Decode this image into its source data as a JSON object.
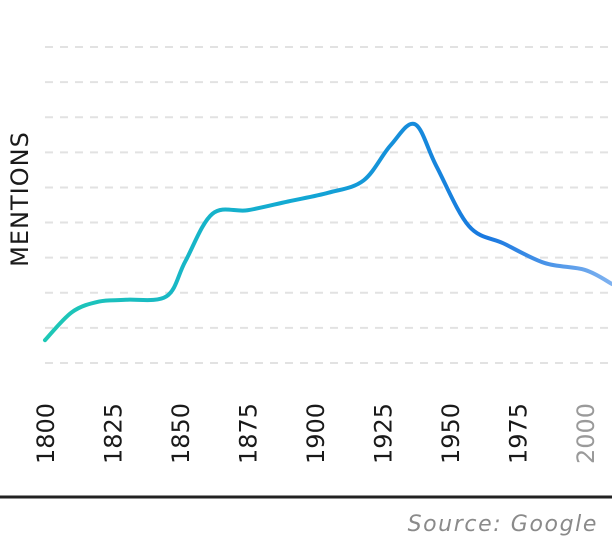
{
  "chart_data": {
    "type": "line",
    "title": "",
    "xlabel": "",
    "ylabel": "MENTIONS",
    "x": [
      1800,
      1810,
      1820,
      1830,
      1845,
      1852,
      1862,
      1875,
      1890,
      1905,
      1918,
      1928,
      1937,
      1945,
      1957,
      1970,
      1985,
      2000,
      2010
    ],
    "values": [
      13,
      29,
      35,
      36,
      38,
      58,
      85,
      87,
      92,
      97,
      104,
      124,
      136,
      112,
      78,
      68,
      57,
      53,
      45
    ],
    "ylim": [
      0,
      180
    ],
    "xlim": [
      1800,
      2010
    ],
    "x_ticks": [
      1800,
      1825,
      1850,
      1875,
      1900,
      1925,
      1950,
      1975,
      2000
    ],
    "future_tick": 2000,
    "grid": "horizontal-dashed",
    "gradient_colors": [
      "#1ec8b6",
      "#12a8d4",
      "#1978e0",
      "#7fb2f0"
    ]
  },
  "source": "Source: Google"
}
